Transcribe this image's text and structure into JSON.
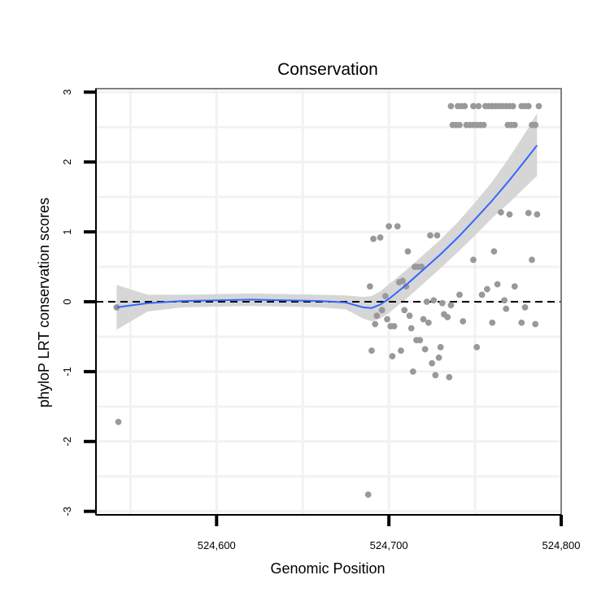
{
  "chart_data": {
    "type": "scatter",
    "title": "Conservation",
    "xlabel": "Genomic Position",
    "ylabel": "phyloP LRT conservation scores",
    "xlim": [
      524530,
      524800
    ],
    "ylim": [
      -3.05,
      3.05
    ],
    "x_ticks": [
      524600,
      524700,
      524800
    ],
    "x_tick_labels": [
      "524,600",
      "524,700",
      "524,800"
    ],
    "y_ticks": [
      -3,
      -2,
      -1,
      0,
      1,
      2,
      3
    ],
    "y_tick_labels": [
      "-3",
      "-2",
      "-1",
      "0",
      "1",
      "2",
      "3"
    ],
    "x_minor_grid": [
      524550,
      524650,
      524750
    ],
    "y_minor_grid": [
      -2.5,
      -1.5,
      -0.5,
      0.5,
      1.5,
      2.5
    ],
    "grid": true,
    "reference_line": {
      "y": 0,
      "style": "dashed",
      "color": "#000000"
    },
    "colors": {
      "points": "#999999",
      "smooth_line": "#3366ff",
      "confidence_band": "#d6d6d6",
      "panel_border": "#808080",
      "grid": "#f2f2f2"
    },
    "points": [
      {
        "x": 524542,
        "y": -0.08
      },
      {
        "x": 524543,
        "y": -1.72
      },
      {
        "x": 524688,
        "y": -2.76
      },
      {
        "x": 524689,
        "y": 0.22
      },
      {
        "x": 524690,
        "y": -0.7
      },
      {
        "x": 524691,
        "y": 0.9
      },
      {
        "x": 524692,
        "y": -0.32
      },
      {
        "x": 524693,
        "y": -0.2
      },
      {
        "x": 524695,
        "y": 0.92
      },
      {
        "x": 524696,
        "y": -0.12
      },
      {
        "x": 524698,
        "y": 0.08
      },
      {
        "x": 524699,
        "y": -0.25
      },
      {
        "x": 524700,
        "y": 1.08
      },
      {
        "x": 524701,
        "y": -0.35
      },
      {
        "x": 524702,
        "y": -0.78
      },
      {
        "x": 524703,
        "y": -0.35
      },
      {
        "x": 524705,
        "y": 1.08
      },
      {
        "x": 524706,
        "y": 0.28
      },
      {
        "x": 524707,
        "y": -0.7
      },
      {
        "x": 524708,
        "y": 0.3
      },
      {
        "x": 524709,
        "y": -0.12
      },
      {
        "x": 524710,
        "y": 0.22
      },
      {
        "x": 524711,
        "y": 0.72
      },
      {
        "x": 524712,
        "y": -0.2
      },
      {
        "x": 524713,
        "y": -0.38
      },
      {
        "x": 524714,
        "y": -1.0
      },
      {
        "x": 524715,
        "y": 0.5
      },
      {
        "x": 524716,
        "y": -0.55
      },
      {
        "x": 524717,
        "y": 0.5
      },
      {
        "x": 524718,
        "y": -0.55
      },
      {
        "x": 524719,
        "y": 0.5
      },
      {
        "x": 524720,
        "y": -0.25
      },
      {
        "x": 524721,
        "y": -0.68
      },
      {
        "x": 524722,
        "y": 0.0
      },
      {
        "x": 524723,
        "y": -0.3
      },
      {
        "x": 524724,
        "y": 0.95
      },
      {
        "x": 524725,
        "y": -0.88
      },
      {
        "x": 524726,
        "y": 0.02
      },
      {
        "x": 524727,
        "y": -1.05
      },
      {
        "x": 524728,
        "y": 0.95
      },
      {
        "x": 524729,
        "y": -0.8
      },
      {
        "x": 524730,
        "y": -0.65
      },
      {
        "x": 524731,
        "y": -0.02
      },
      {
        "x": 524732,
        "y": -0.18
      },
      {
        "x": 524734,
        "y": -0.22
      },
      {
        "x": 524735,
        "y": -1.08
      },
      {
        "x": 524736,
        "y": -0.05
      },
      {
        "x": 524741,
        "y": 0.1
      },
      {
        "x": 524743,
        "y": -0.28
      },
      {
        "x": 524749,
        "y": 0.6
      },
      {
        "x": 524751,
        "y": -0.65
      },
      {
        "x": 524754,
        "y": 0.1
      },
      {
        "x": 524757,
        "y": 0.18
      },
      {
        "x": 524760,
        "y": -0.3
      },
      {
        "x": 524761,
        "y": 0.72
      },
      {
        "x": 524763,
        "y": 0.25
      },
      {
        "x": 524765,
        "y": 1.28
      },
      {
        "x": 524767,
        "y": 0.02
      },
      {
        "x": 524768,
        "y": -0.1
      },
      {
        "x": 524770,
        "y": 1.25
      },
      {
        "x": 524773,
        "y": 0.22
      },
      {
        "x": 524777,
        "y": -0.3
      },
      {
        "x": 524779,
        "y": -0.08
      },
      {
        "x": 524781,
        "y": 1.27
      },
      {
        "x": 524783,
        "y": 0.6
      },
      {
        "x": 524785,
        "y": -0.32
      },
      {
        "x": 524786,
        "y": 1.25
      },
      {
        "x": 524736,
        "y": 2.8
      },
      {
        "x": 524740,
        "y": 2.8
      },
      {
        "x": 524742,
        "y": 2.8
      },
      {
        "x": 524744,
        "y": 2.8
      },
      {
        "x": 524749,
        "y": 2.8
      },
      {
        "x": 524752,
        "y": 2.8
      },
      {
        "x": 524756,
        "y": 2.8
      },
      {
        "x": 524758,
        "y": 2.8
      },
      {
        "x": 524760,
        "y": 2.8
      },
      {
        "x": 524762,
        "y": 2.8
      },
      {
        "x": 524764,
        "y": 2.8
      },
      {
        "x": 524766,
        "y": 2.8
      },
      {
        "x": 524768,
        "y": 2.8
      },
      {
        "x": 524770,
        "y": 2.8
      },
      {
        "x": 524772,
        "y": 2.8
      },
      {
        "x": 524777,
        "y": 2.8
      },
      {
        "x": 524779,
        "y": 2.8
      },
      {
        "x": 524781,
        "y": 2.8
      },
      {
        "x": 524787,
        "y": 2.8
      },
      {
        "x": 524737,
        "y": 2.53
      },
      {
        "x": 524739,
        "y": 2.53
      },
      {
        "x": 524741,
        "y": 2.53
      },
      {
        "x": 524745,
        "y": 2.53
      },
      {
        "x": 524747,
        "y": 2.53
      },
      {
        "x": 524749,
        "y": 2.53
      },
      {
        "x": 524751,
        "y": 2.53
      },
      {
        "x": 524753,
        "y": 2.53
      },
      {
        "x": 524755,
        "y": 2.53
      },
      {
        "x": 524769,
        "y": 2.53
      },
      {
        "x": 524771,
        "y": 2.53
      },
      {
        "x": 524773,
        "y": 2.53
      },
      {
        "x": 524783,
        "y": 2.53
      },
      {
        "x": 524785,
        "y": 2.53
      }
    ],
    "smooth_line": [
      {
        "x": 524542,
        "y": -0.08,
        "lo": -0.4,
        "hi": 0.24
      },
      {
        "x": 524560,
        "y": -0.02,
        "lo": -0.14,
        "hi": 0.1
      },
      {
        "x": 524580,
        "y": 0.01,
        "lo": -0.08,
        "hi": 0.1
      },
      {
        "x": 524600,
        "y": 0.02,
        "lo": -0.07,
        "hi": 0.11
      },
      {
        "x": 524620,
        "y": 0.03,
        "lo": -0.06,
        "hi": 0.12
      },
      {
        "x": 524640,
        "y": 0.02,
        "lo": -0.07,
        "hi": 0.11
      },
      {
        "x": 524660,
        "y": 0.01,
        "lo": -0.08,
        "hi": 0.1
      },
      {
        "x": 524675,
        "y": -0.01,
        "lo": -0.11,
        "hi": 0.09
      },
      {
        "x": 524685,
        "y": -0.08,
        "lo": -0.24,
        "hi": 0.07
      },
      {
        "x": 524690,
        "y": -0.09,
        "lo": -0.28,
        "hi": 0.08
      },
      {
        "x": 524695,
        "y": -0.04,
        "lo": -0.24,
        "hi": 0.15
      },
      {
        "x": 524700,
        "y": 0.04,
        "lo": -0.16,
        "hi": 0.25
      },
      {
        "x": 524710,
        "y": 0.24,
        "lo": 0.04,
        "hi": 0.45
      },
      {
        "x": 524720,
        "y": 0.46,
        "lo": 0.26,
        "hi": 0.67
      },
      {
        "x": 524730,
        "y": 0.68,
        "lo": 0.48,
        "hi": 0.89
      },
      {
        "x": 524740,
        "y": 0.92,
        "lo": 0.71,
        "hi": 1.14
      },
      {
        "x": 524750,
        "y": 1.18,
        "lo": 0.95,
        "hi": 1.42
      },
      {
        "x": 524760,
        "y": 1.45,
        "lo": 1.2,
        "hi": 1.72
      },
      {
        "x": 524770,
        "y": 1.74,
        "lo": 1.42,
        "hi": 2.07
      },
      {
        "x": 524780,
        "y": 2.05,
        "lo": 1.66,
        "hi": 2.45
      },
      {
        "x": 524786,
        "y": 2.24,
        "lo": 1.8,
        "hi": 2.7
      }
    ]
  }
}
